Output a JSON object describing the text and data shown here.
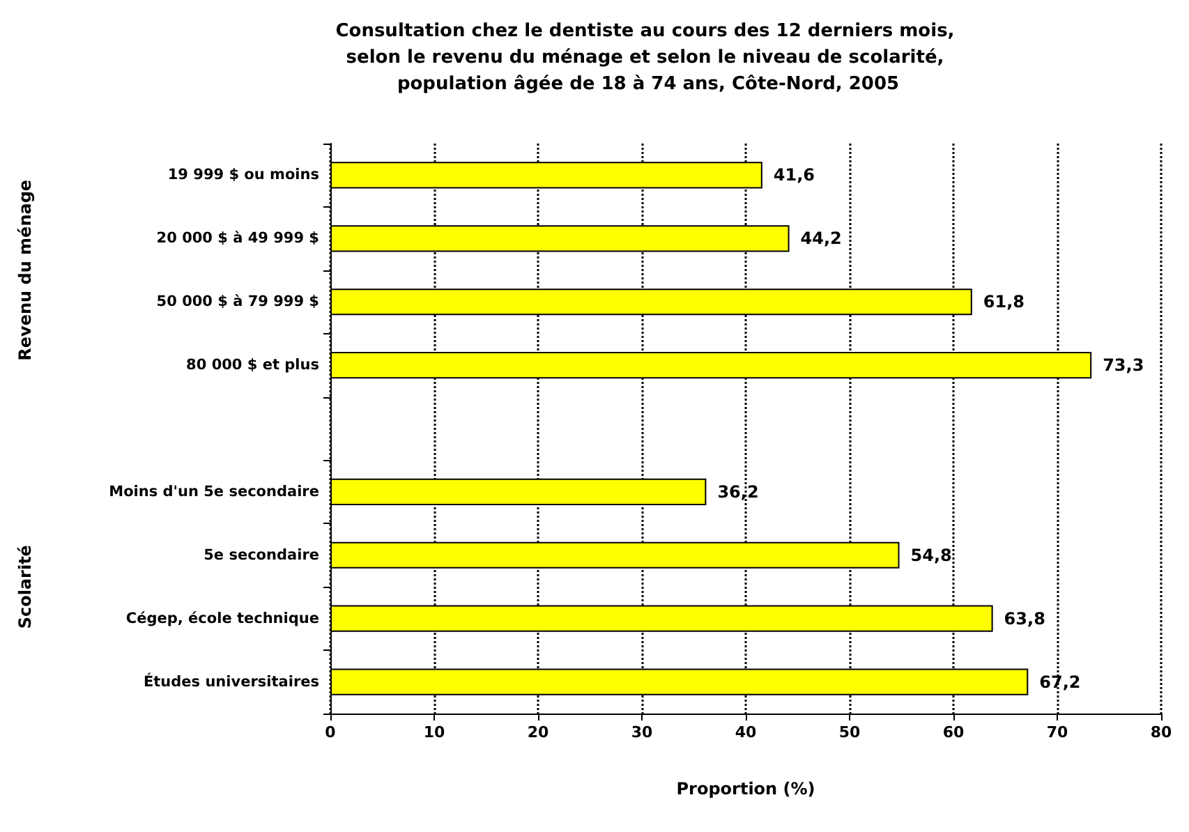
{
  "chart_data": {
    "type": "bar",
    "orientation": "horizontal",
    "title": "Consultation chez le dentiste au cours des 12 derniers mois, selon le revenu du ménage et selon le niveau de scolarité, population âgée de 18 à 74 ans, Côte-Nord, 2005",
    "xlabel": "Proportion (%)",
    "categories": [
      "19 999 $ ou moins",
      "20 000 $ à 49 999 $",
      "50 000 $ à 79 999 $",
      "80 000 $ et plus",
      null,
      "Moins d'un 5e secondaire",
      "5e secondaire",
      "Cégep, école technique",
      "Études universitaires"
    ],
    "values": [
      41.6,
      44.2,
      61.8,
      73.3,
      null,
      36.2,
      54.8,
      63.8,
      67.2
    ],
    "value_labels": [
      "41,6",
      "44,2",
      "61,8",
      "73,3",
      null,
      "36,2",
      "54,8",
      "63,8",
      "67,2"
    ],
    "color": "#ffff00",
    "xlim": [
      0,
      80
    ],
    "xticks": [
      0,
      10,
      20,
      30,
      40,
      50,
      60,
      70,
      80
    ],
    "grid": "x",
    "annotations": [
      "Revenu du ménage",
      "Scolarité"
    ]
  }
}
